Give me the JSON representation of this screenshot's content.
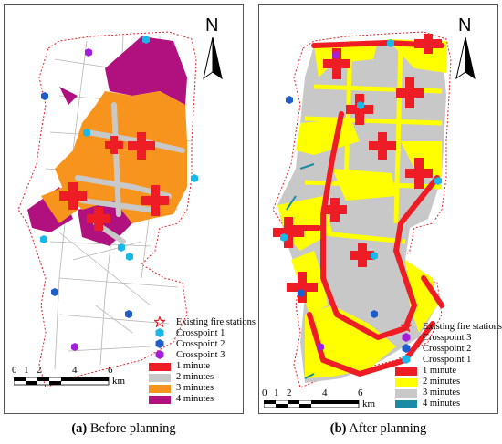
{
  "panels": [
    {
      "id": "a",
      "caption_label": "(a)",
      "caption_text": "Before planning",
      "north_label": "N",
      "scale_ticks": [
        "0",
        "1",
        "2",
        "4",
        "6"
      ],
      "scale_unit": "km",
      "legend": [
        {
          "kind": "symbol",
          "icon": "star",
          "color": "#e21e26",
          "label": "Existing fire stations"
        },
        {
          "kind": "symbol",
          "icon": "hexagon",
          "color": "#19b8e8",
          "label": "Crosspoint 1"
        },
        {
          "kind": "symbol",
          "icon": "hexagon",
          "color": "#1f5ec9",
          "label": "Crosspoint 2"
        },
        {
          "kind": "symbol",
          "icon": "hexagon",
          "color": "#a31fdc",
          "label": "Crosspoint 3"
        },
        {
          "kind": "swatch",
          "color": "#ee1c25",
          "label": "1 minute"
        },
        {
          "kind": "swatch",
          "color": "#c8c8c8",
          "label": "2 minutes"
        },
        {
          "kind": "swatch",
          "color": "#f7941d",
          "label": "3 minutes"
        },
        {
          "kind": "swatch",
          "color": "#b0117e",
          "label": "4 minutes"
        }
      ]
    },
    {
      "id": "b",
      "caption_label": "(b)",
      "caption_text": "After planning",
      "north_label": "N",
      "scale_ticks": [
        "0",
        "1",
        "2",
        "4",
        "6"
      ],
      "scale_unit": "km",
      "legend": [
        {
          "kind": "symbol",
          "icon": "star",
          "color": "#e21e26",
          "label": "Existing fire stations"
        },
        {
          "kind": "symbol",
          "icon": "hexagon",
          "color": "#a31fdc",
          "label": "Crosspoint 3"
        },
        {
          "kind": "symbol",
          "icon": "hexagon",
          "color": "#1f5ec9",
          "label": "Crosspoint 2"
        },
        {
          "kind": "symbol",
          "icon": "hexagon",
          "color": "#19b8e8",
          "label": "Crosspoint 1"
        },
        {
          "kind": "swatch",
          "color": "#ee1c25",
          "label": "1 minute"
        },
        {
          "kind": "swatch",
          "color": "#ffff00",
          "label": "2 minutes"
        },
        {
          "kind": "swatch",
          "color": "#c8c8c8",
          "label": "3 minutes"
        },
        {
          "kind": "swatch",
          "color": "#1a8aa5",
          "label": "4 minutes"
        }
      ]
    }
  ]
}
